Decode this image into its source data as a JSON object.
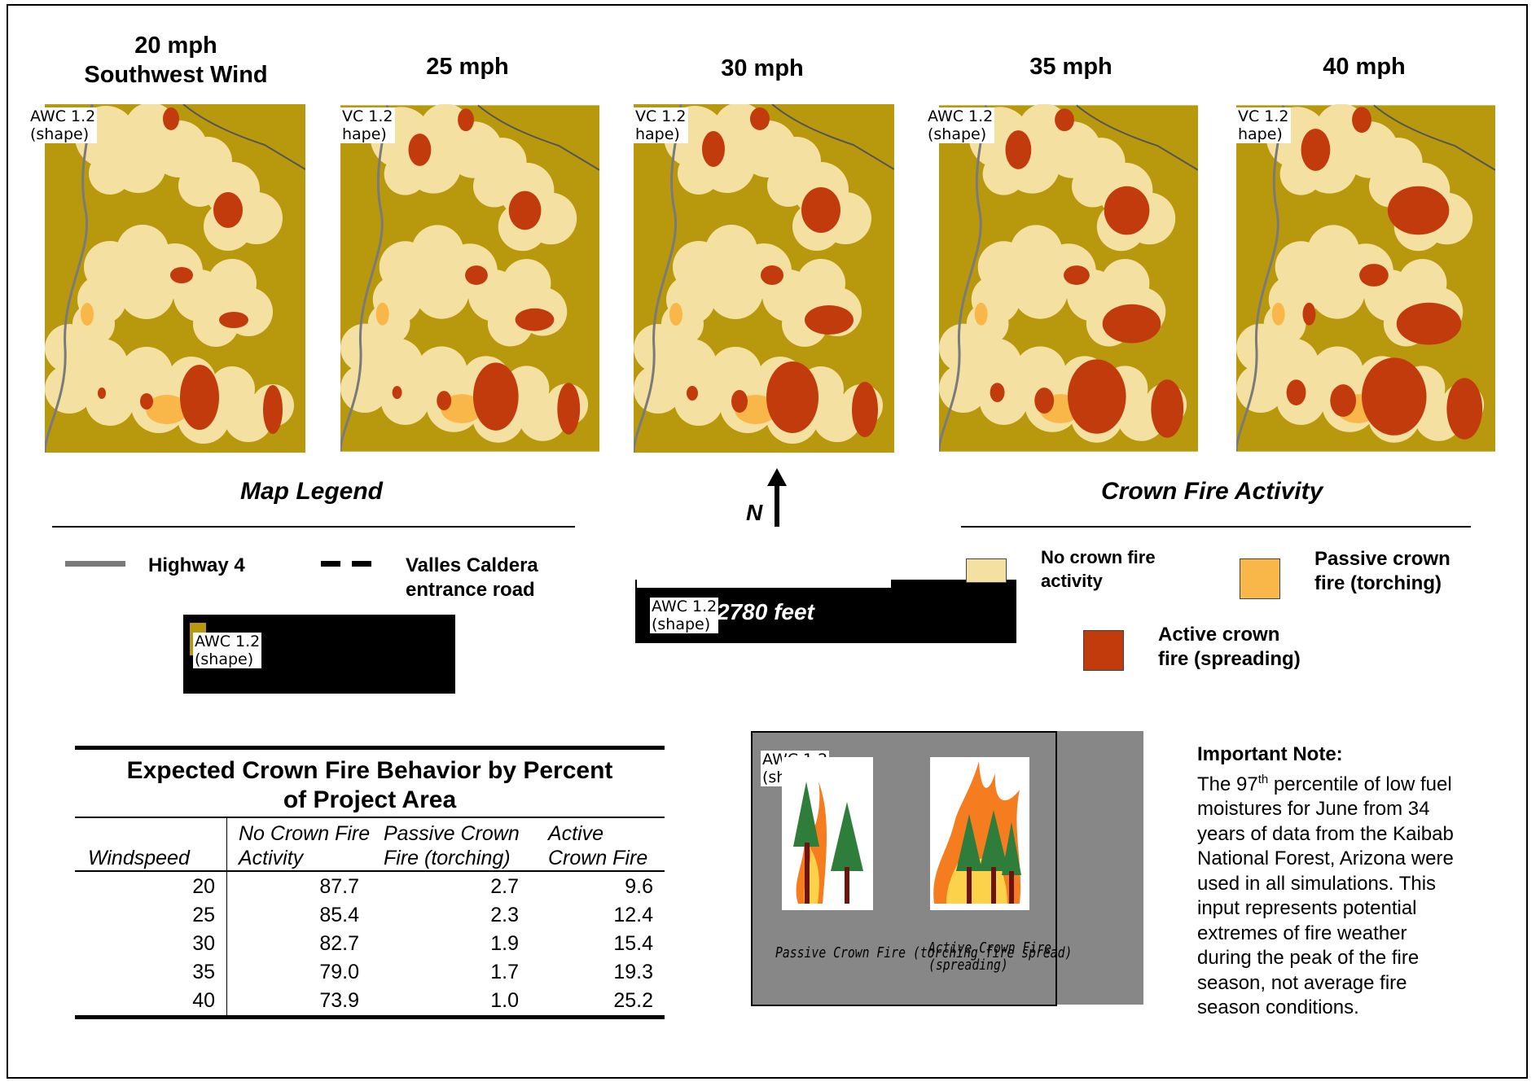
{
  "maps": [
    {
      "title_line1": "20 mph",
      "title_line2": "Southwest Wind",
      "awc_line1": "AWC 1.2",
      "awc_line2": "(shape)"
    },
    {
      "title_line1": "25 mph",
      "title_line2": "",
      "awc_line1": "VC 1.2",
      "awc_line2": "hape)"
    },
    {
      "title_line1": "30 mph",
      "title_line2": "",
      "awc_line1": "VC 1.2",
      "awc_line2": "hape)"
    },
    {
      "title_line1": "35 mph",
      "title_line2": "",
      "awc_line1": "AWC 1.2",
      "awc_line2": "(shape)"
    },
    {
      "title_line1": "40 mph",
      "title_line2": "",
      "awc_line1": "VC 1.2",
      "awc_line2": "hape)"
    }
  ],
  "legend": {
    "map_legend_title": "Map Legend",
    "highway_label": "Highway 4",
    "road_label_1": "Valles Caldera",
    "road_label_2": "entrance road",
    "black_box_awc_1": "AWC 1.2",
    "black_box_awc_2": "(shape)",
    "north_label": "N",
    "scale_awc_1": "AWC 1.2",
    "scale_awc_2": "(shape)",
    "scale_label": "2780 feet",
    "crown_title": "Crown Fire Activity",
    "no_crown_1": "No crown fire",
    "no_crown_2": "activity",
    "passive_1": "Passive crown",
    "passive_2": "fire (torching)",
    "active_1": "Active crown",
    "active_2": "fire (spreading)"
  },
  "colors": {
    "background": "#b8990e",
    "no_crown": "#f4e0a0",
    "passive": "#f8b748",
    "active": "#c23b0c",
    "road": "#7a7a7a"
  },
  "table": {
    "title_line1": "Expected Crown Fire Behavior by Percent",
    "title_line2": "of Project Area",
    "headers": [
      "Windspeed",
      "No Crown Fire Activity",
      "Passive Crown Fire (torching)",
      "Active Crown Fire"
    ],
    "rows": [
      [
        "20",
        "87.7",
        "2.7",
        "9.6"
      ],
      [
        "25",
        "85.4",
        "2.3",
        "12.4"
      ],
      [
        "30",
        "82.7",
        "1.9",
        "15.4"
      ],
      [
        "35",
        "79.0",
        "1.7",
        "19.3"
      ],
      [
        "40",
        "73.9",
        "1.0",
        "25.2"
      ]
    ]
  },
  "illustration": {
    "awc_1": "AWC 1.2",
    "awc_2": "(shape)",
    "caption_passive": "Passive Crown Fire (torching fire spread)",
    "caption_active": "Active Crown Fire (spreading)"
  },
  "note": {
    "title": "Important Note:",
    "lines": [
      "The 97th percentile of low fuel",
      "moistures for June from 34",
      "years of data from the Kaibab",
      "National Forest, Arizona were",
      "used in all simulations.  This",
      "input represents potential",
      "extremes of fire weather",
      "during the peak of the fire",
      "season, not average fire",
      "season conditions."
    ]
  }
}
